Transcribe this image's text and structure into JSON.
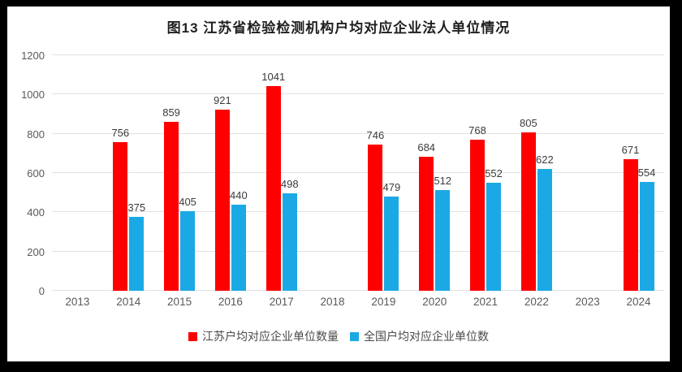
{
  "title": "图13  江苏省检验检测机构户均对应企业法人单位情况",
  "colors": {
    "series_jiangsu": "#ff0000",
    "series_national": "#1ba9e5",
    "gridline": "#e2e2e2",
    "tick_text": "#595959",
    "label_text": "#3b3b3b",
    "frame": "#000000",
    "background": "#ffffff"
  },
  "chart_data": {
    "type": "bar",
    "title": "图13  江苏省检验检测机构户均对应企业法人单位情况",
    "categories": [
      "2013",
      "2014",
      "2015",
      "2016",
      "2017",
      "2018",
      "2019",
      "2020",
      "2021",
      "2022",
      "2023",
      "2024"
    ],
    "series": [
      {
        "name": "江苏户均对应企业单位数量",
        "color": "#ff0000",
        "values": [
          null,
          756,
          859,
          921,
          1041,
          null,
          746,
          684,
          768,
          805,
          null,
          671
        ]
      },
      {
        "name": "全国户均对应企业单位数",
        "color": "#1ba9e5",
        "values": [
          null,
          375,
          405,
          440,
          498,
          null,
          479,
          512,
          552,
          622,
          null,
          554
        ]
      }
    ],
    "xlabel": "",
    "ylabel": "",
    "ylim": [
      0,
      1200
    ],
    "yticks": [
      0,
      200,
      400,
      600,
      800,
      1000,
      1200
    ],
    "grid": true,
    "data_labels": true,
    "legend_position": "bottom"
  }
}
